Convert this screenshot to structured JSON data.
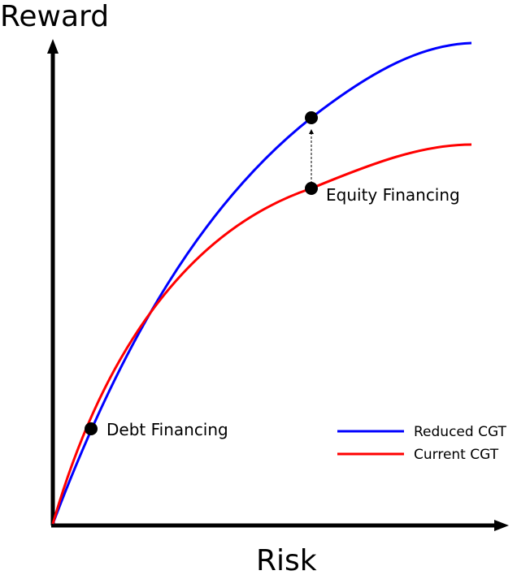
{
  "axes": {
    "x_label": "Risk",
    "y_label": "Reward"
  },
  "legend": {
    "placement": "bottom-right",
    "items": [
      {
        "label": "Reduced CGT",
        "color": "#0000ff"
      },
      {
        "label": "Current CGT",
        "color": "#ff0000"
      }
    ]
  },
  "curves": [
    {
      "name": "Reduced CGT",
      "color": "#0000ff"
    },
    {
      "name": "Current CGT",
      "color": "#ff0000"
    }
  ],
  "points": [
    {
      "label": "Debt Financing",
      "on_curve": "both"
    },
    {
      "label": "Equity Financing",
      "on_curve": "Current CGT"
    },
    {
      "label": "",
      "on_curve": "Reduced CGT"
    }
  ],
  "annotation": {
    "type": "dashed-arrow",
    "description_visible": false
  },
  "colors": {
    "axis": "#000000",
    "point": "#000000",
    "background": "#ffffff"
  }
}
